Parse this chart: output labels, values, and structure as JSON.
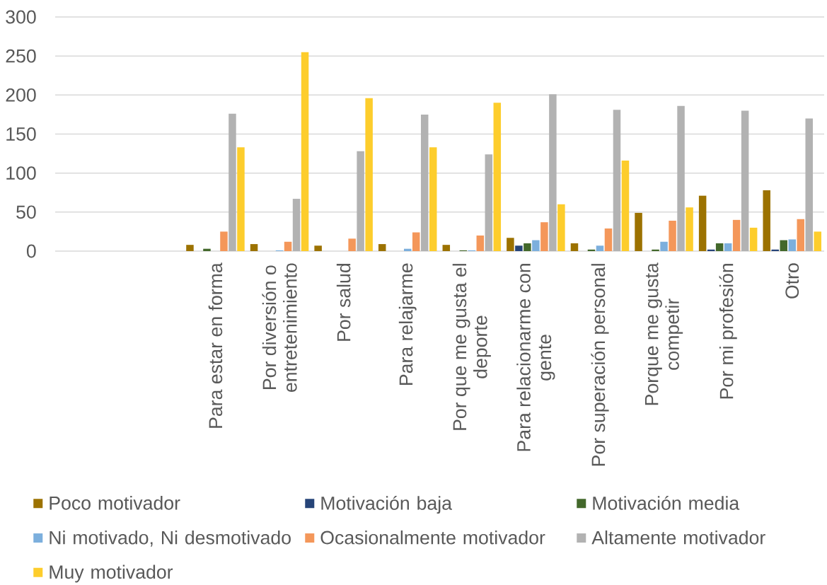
{
  "chart_data": {
    "type": "bar",
    "categories": [
      null,
      null,
      "Para estar en forma",
      "Por diversión o entretenimiento",
      "Por salud",
      "Para relajarme",
      "Por que me gusta el deporte",
      "Para relacionarme con gente",
      "Por superación personal",
      "Porque me gusta competir",
      "Por mi profesión",
      "Otro"
    ],
    "series": [
      {
        "name": "Poco motivador",
        "color": "#9c7200",
        "values": [
          null,
          null,
          8,
          9,
          7,
          9,
          8,
          17,
          10,
          49,
          71,
          78
        ]
      },
      {
        "name": "Motivación baja",
        "color": "#264478",
        "values": [
          null,
          null,
          0,
          0,
          0,
          0,
          0,
          7,
          0,
          0,
          2,
          2
        ]
      },
      {
        "name": "Motivación media",
        "color": "#43682b",
        "values": [
          null,
          null,
          3,
          0,
          0,
          0,
          1,
          10,
          2,
          2,
          10,
          14
        ]
      },
      {
        "name": "Ni motivado, Ni desmotivado",
        "color": "#7cafdd",
        "values": [
          null,
          null,
          0,
          1,
          0,
          3,
          1,
          14,
          7,
          12,
          10,
          15
        ]
      },
      {
        "name": "Ocasionalmente motivador",
        "color": "#f4975a",
        "values": [
          null,
          null,
          25,
          12,
          16,
          24,
          20,
          37,
          29,
          39,
          40,
          41
        ]
      },
      {
        "name": "Altamente motivador",
        "color": "#b2b2b2",
        "values": [
          null,
          null,
          176,
          67,
          128,
          175,
          124,
          201,
          181,
          186,
          180,
          170
        ]
      },
      {
        "name": "Muy motivador",
        "color": "#fdcd2c",
        "values": [
          null,
          null,
          133,
          255,
          196,
          133,
          190,
          60,
          116,
          56,
          30,
          25
        ]
      }
    ],
    "ylim": [
      0,
      300
    ],
    "yticks": [
      0,
      50,
      100,
      150,
      200,
      250,
      300
    ],
    "grid": "y",
    "legend": "bottom"
  }
}
